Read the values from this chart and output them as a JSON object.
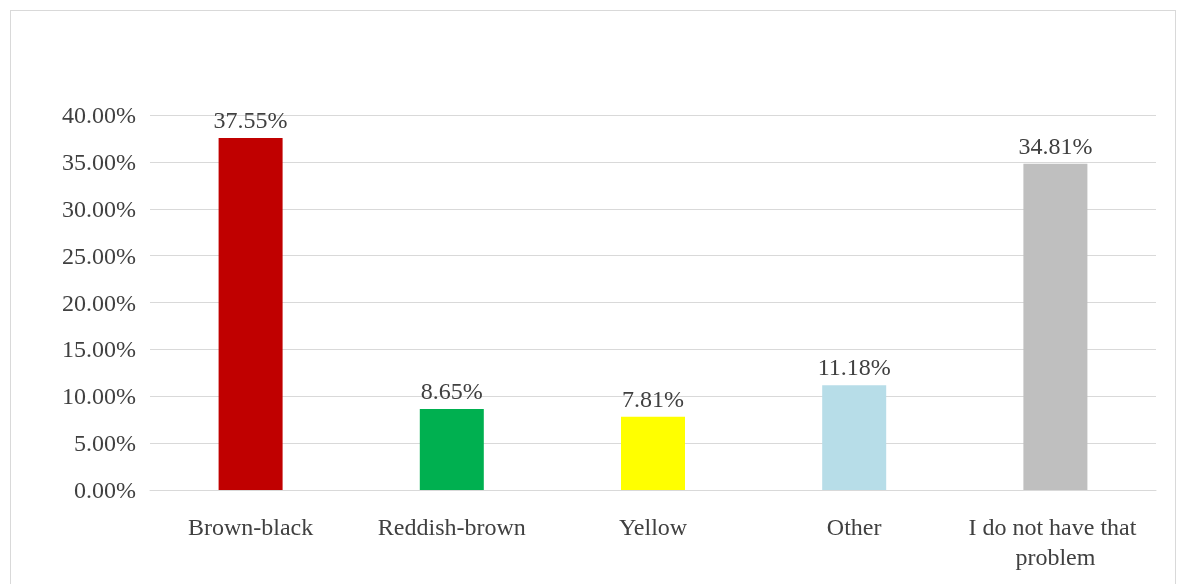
{
  "chart_data": {
    "type": "bar",
    "categories": [
      "Brown-black",
      "Reddish-brown",
      "Yellow",
      "Other",
      "I do not have that problem"
    ],
    "values": [
      37.55,
      8.65,
      7.81,
      11.18,
      34.81
    ],
    "colors": [
      "#c00000",
      "#00b050",
      "#ffff00",
      "#b7dde8",
      "#bfbfbf"
    ],
    "value_labels": [
      "37.55%",
      "8.65%",
      "7.81%",
      "11.18%",
      "34.81%"
    ],
    "ylim": [
      0,
      40
    ],
    "yticks": [
      {
        "value": 0,
        "label": "0.00%"
      },
      {
        "value": 5,
        "label": "5.00%"
      },
      {
        "value": 10,
        "label": "10.00%"
      },
      {
        "value": 15,
        "label": "15.00%"
      },
      {
        "value": 20,
        "label": "20.00%"
      },
      {
        "value": 25,
        "label": "25.00%"
      },
      {
        "value": 30,
        "label": "30.00%"
      },
      {
        "value": 35,
        "label": "35.00%"
      },
      {
        "value": 40,
        "label": "40.00%"
      }
    ],
    "grid": "y"
  }
}
